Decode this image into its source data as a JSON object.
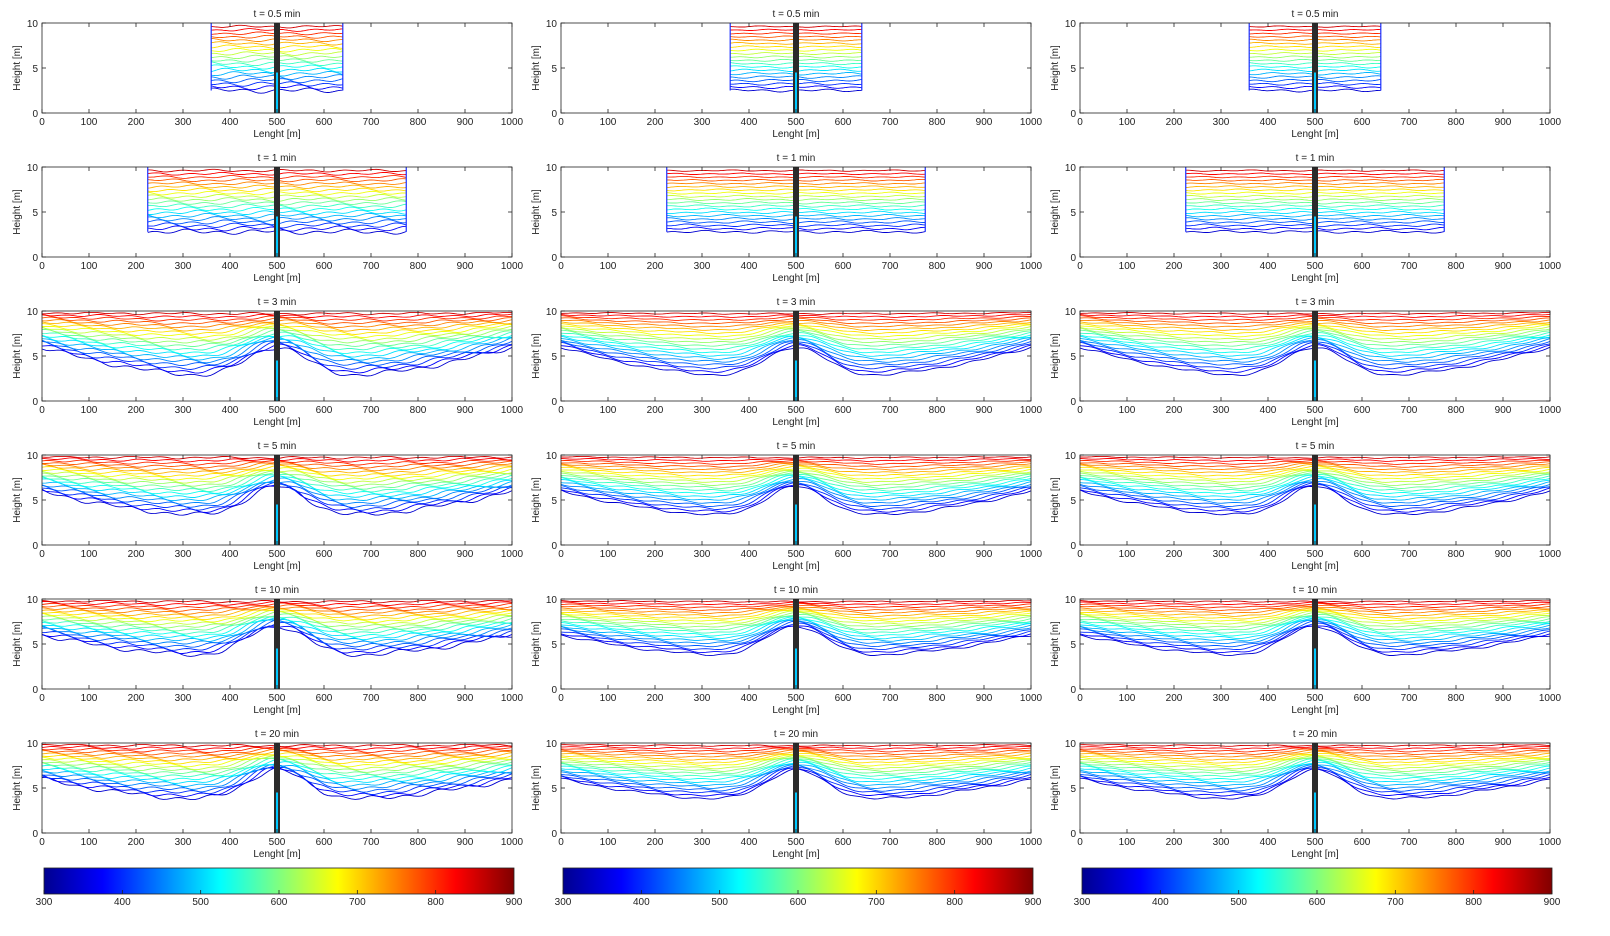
{
  "figure": {
    "panel_titles": [
      "t = 0.5 min",
      "t = 1 min",
      "t = 3 min",
      "t = 5 min",
      "t = 10 min",
      "t = 20 min"
    ],
    "columns": 3,
    "xlabel": "Lenght [m]",
    "ylabel": "Height [m]"
  },
  "chart_data": {
    "type": "contour",
    "xlabel": "Lenght [m]",
    "ylabel": "Height [m]",
    "xlim": [
      0,
      1000
    ],
    "ylim": [
      0,
      10
    ],
    "xticks": [
      0,
      100,
      200,
      300,
      400,
      500,
      600,
      700,
      800,
      900,
      1000
    ],
    "yticks": [
      0,
      5,
      10
    ],
    "colorbar": {
      "range": [
        300,
        900
      ],
      "ticks": [
        300,
        400,
        500,
        600,
        700,
        800,
        900
      ],
      "colormap": "jet"
    },
    "panels": [
      {
        "title": "t = 0.5 min",
        "front_x": [
          360,
          640
        ],
        "min_height": 2.5
      },
      {
        "title": "t = 1 min",
        "front_x": [
          225,
          775
        ],
        "min_height": 2.8
      },
      {
        "title": "t = 3 min",
        "front_x": [
          0,
          1000
        ],
        "min_height": 2.5
      },
      {
        "title": "t = 5 min",
        "front_x": [
          0,
          1000
        ],
        "min_height": 3.0
      },
      {
        "title": "t = 10 min",
        "front_x": [
          0,
          1000
        ],
        "min_height": 3.5
      },
      {
        "title": "t = 20 min",
        "front_x": [
          0,
          1000
        ],
        "min_height": 3.5
      }
    ],
    "grid": false,
    "colors": {
      "axis": "#222222",
      "jet_stops": [
        "#00008f",
        "#0000ff",
        "#00ffff",
        "#ffff00",
        "#ff0000",
        "#800000"
      ]
    }
  }
}
